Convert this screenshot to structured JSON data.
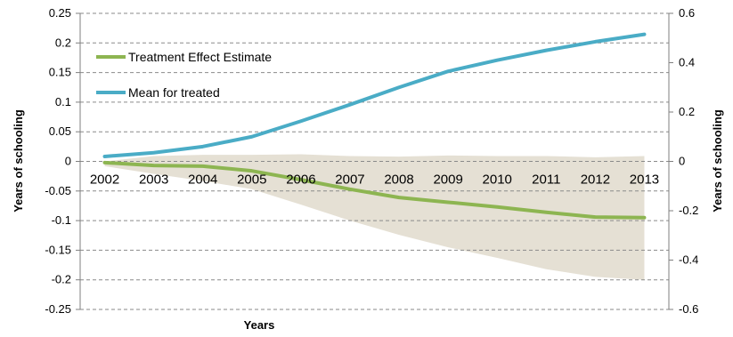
{
  "chart_data": {
    "type": "line",
    "title": "",
    "xlabel": "Years",
    "ylabel": "Years of schooling",
    "y2label": "Years of schooling",
    "categories": [
      "2002",
      "2003",
      "2004",
      "2005",
      "2006",
      "2007",
      "2008",
      "2009",
      "2010",
      "2011",
      "2012",
      "2013"
    ],
    "ylim": [
      -0.25,
      0.25
    ],
    "yticks": [
      0.25,
      0.2,
      0.15,
      0.1,
      0.05,
      0,
      -0.05,
      -0.1,
      -0.15,
      -0.2,
      -0.25
    ],
    "ytick_labels": [
      "0.25",
      "0.2",
      "0.15",
      "0.1",
      "0.05",
      "0",
      "-0.05",
      "-0.1",
      "-0.15",
      "-0.2",
      "-0.25"
    ],
    "y2lim": [
      -0.6,
      0.6
    ],
    "y2ticks": [
      0.6,
      0.4,
      0.2,
      0,
      -0.2,
      -0.4,
      -0.6
    ],
    "y2tick_labels": [
      "0.6",
      "0.4",
      "0.2",
      "0",
      "-0.2",
      "-0.4",
      "-0.6"
    ],
    "grid": "horizontal-dashed",
    "legend_position": "top-left",
    "series": [
      {
        "name": "Treatment Effect Estimate",
        "axis": "left",
        "color": "#8db551",
        "values": [
          -0.002,
          -0.007,
          -0.008,
          -0.016,
          -0.031,
          -0.047,
          -0.061,
          -0.069,
          -0.077,
          -0.086,
          -0.094,
          -0.095
        ]
      },
      {
        "name": "Mean for treated",
        "axis": "right",
        "color": "#4aacc6",
        "values": [
          0.02,
          0.035,
          0.06,
          0.1,
          0.163,
          0.23,
          0.3,
          0.365,
          0.41,
          0.45,
          0.485,
          0.515
        ]
      }
    ],
    "confidence_band": {
      "axis": "left",
      "color": "#e5e0d4",
      "upper": [
        0.0,
        0.009,
        0.011,
        0.011,
        0.012,
        0.009,
        0.008,
        0.01,
        0.009,
        0.009,
        0.007,
        0.009
      ],
      "lower": [
        -0.008,
        -0.021,
        -0.033,
        -0.047,
        -0.073,
        -0.1,
        -0.124,
        -0.145,
        -0.163,
        -0.182,
        -0.195,
        -0.2
      ]
    }
  }
}
